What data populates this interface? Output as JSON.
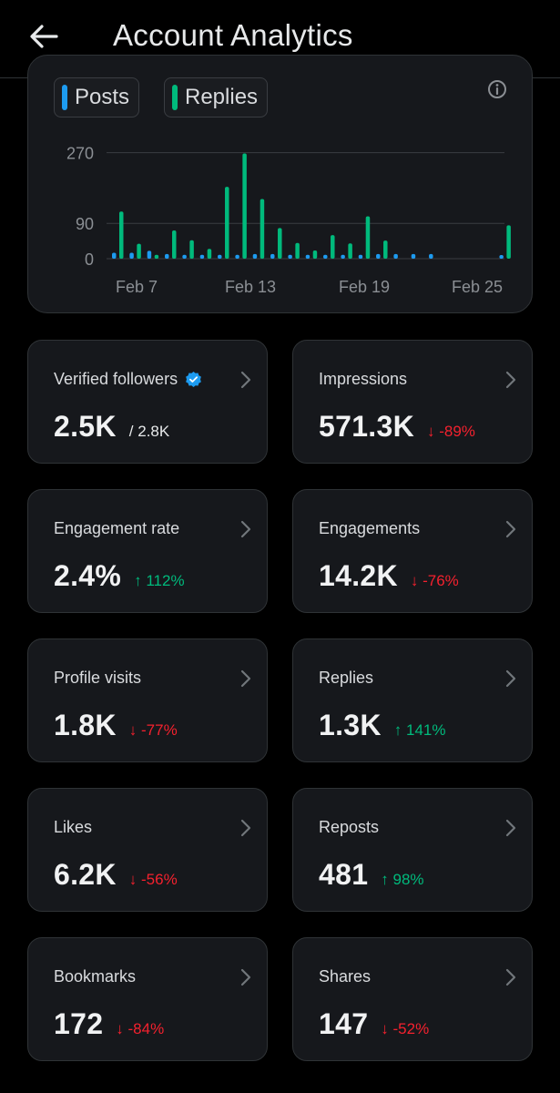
{
  "header": {
    "title": "Account Analytics"
  },
  "chart_data": {
    "type": "bar",
    "legend": [
      "Posts",
      "Replies"
    ],
    "colors": {
      "Posts": "#1d9bf0",
      "Replies": "#00ba7c"
    },
    "y_ticks": [
      "270",
      "90",
      "0"
    ],
    "x_ticks": [
      "Feb 7",
      "Feb 13",
      "Feb 19",
      "Feb 25"
    ],
    "categories": [
      "Feb 6",
      "Feb 7",
      "Feb 8",
      "Feb 9",
      "Feb 10",
      "Feb 11",
      "Feb 12",
      "Feb 13",
      "Feb 14",
      "Feb 15",
      "Feb 16",
      "Feb 17",
      "Feb 18",
      "Feb 19",
      "Feb 20",
      "Feb 21",
      "Feb 22",
      "Feb 23",
      "Feb 24",
      "Feb 25",
      "Feb 26",
      "Feb 27",
      "Feb 28"
    ],
    "series": [
      {
        "name": "Posts",
        "values": [
          15,
          15,
          20,
          12,
          10,
          10,
          10,
          10,
          12,
          12,
          10,
          10,
          10,
          10,
          10,
          12,
          12,
          12,
          12,
          0,
          0,
          0,
          3
        ]
      },
      {
        "name": "Replies",
        "values": [
          120,
          38,
          10,
          72,
          47,
          25,
          183,
          268,
          152,
          78,
          40,
          21,
          60,
          39,
          108,
          46,
          0,
          0,
          0,
          0,
          0,
          0,
          85
        ]
      }
    ],
    "ylim": [
      0,
      290
    ],
    "grid": true
  },
  "stats": [
    {
      "label": "Verified followers",
      "value": "2.5K",
      "sub": "/ 2.8K",
      "verified": true
    },
    {
      "label": "Impressions",
      "value": "571.3K",
      "change": "↓ -89%",
      "trend": "down"
    },
    {
      "label": "Engagement rate",
      "value": "2.4%",
      "change": "↑ 112%",
      "trend": "up"
    },
    {
      "label": "Engagements",
      "value": "14.2K",
      "change": "↓ -76%",
      "trend": "down"
    },
    {
      "label": "Profile visits",
      "value": "1.8K",
      "change": "↓ -77%",
      "trend": "down"
    },
    {
      "label": "Replies",
      "value": "1.3K",
      "change": "↑ 141%",
      "trend": "up"
    },
    {
      "label": "Likes",
      "value": "6.2K",
      "change": "↓ -56%",
      "trend": "down"
    },
    {
      "label": "Reposts",
      "value": "481",
      "change": "↑ 98%",
      "trend": "up"
    },
    {
      "label": "Bookmarks",
      "value": "172",
      "change": "↓ -84%",
      "trend": "down"
    },
    {
      "label": "Shares",
      "value": "147",
      "change": "↓ -52%",
      "trend": "down"
    }
  ]
}
